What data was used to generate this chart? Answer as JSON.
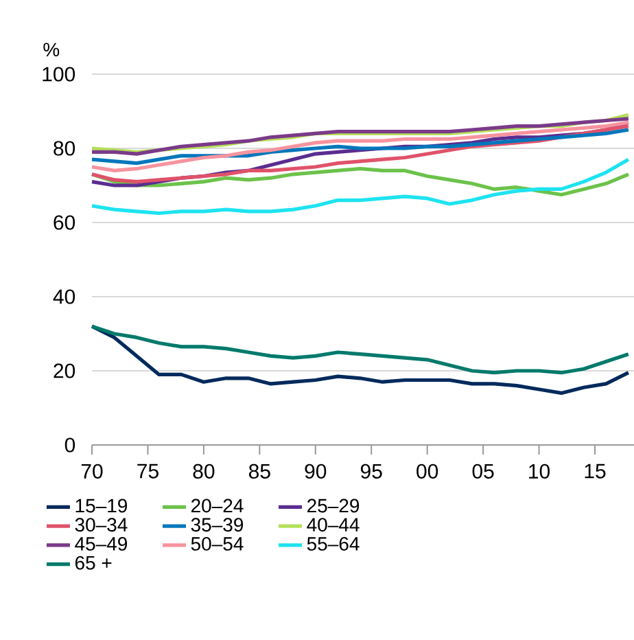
{
  "chart_data": {
    "type": "line",
    "ylabel": "%",
    "x": [
      1970,
      1972,
      1974,
      1976,
      1978,
      1980,
      1982,
      1984,
      1986,
      1988,
      1990,
      1992,
      1994,
      1996,
      1998,
      2000,
      2002,
      2004,
      2006,
      2008,
      2010,
      2012,
      2014,
      2016,
      2018
    ],
    "xlim": [
      1970,
      2018.5
    ],
    "xticks": [
      {
        "value": 1970,
        "label": "70"
      },
      {
        "value": 1975,
        "label": "75"
      },
      {
        "value": 1980,
        "label": "80"
      },
      {
        "value": 1985,
        "label": "85"
      },
      {
        "value": 1990,
        "label": "90"
      },
      {
        "value": 1995,
        "label": "95"
      },
      {
        "value": 2000,
        "label": "00"
      },
      {
        "value": 2005,
        "label": "05"
      },
      {
        "value": 2010,
        "label": "10"
      },
      {
        "value": 2015,
        "label": "15"
      }
    ],
    "ylim": [
      0,
      100
    ],
    "yticks": [
      0,
      20,
      40,
      60,
      80,
      100
    ],
    "grid": "y",
    "legend": "bottom",
    "line_style": "solid",
    "series": [
      {
        "name": "15–19",
        "color": "#002a5c",
        "values": [
          32,
          29,
          24,
          19,
          19,
          17,
          18,
          18,
          16.5,
          17,
          17.5,
          18.5,
          18,
          17,
          17.5,
          17.5,
          17.5,
          16.5,
          16.5,
          16,
          15,
          14,
          15.5,
          16.5,
          19.5
        ]
      },
      {
        "name": "20–24",
        "color": "#6cc24a",
        "values": [
          73,
          71,
          70,
          70,
          70.5,
          71,
          72,
          71.5,
          72,
          73,
          73.5,
          74,
          74.5,
          74,
          74,
          72.5,
          71.5,
          70.5,
          69,
          69.5,
          68.5,
          67.5,
          69,
          70.5,
          73
        ]
      },
      {
        "name": "25–29",
        "color": "#5a2d91",
        "values": [
          71,
          70,
          70,
          71,
          72,
          72.5,
          73.5,
          74,
          75.5,
          77,
          78.5,
          79,
          79.5,
          80,
          80.5,
          80.5,
          81,
          81.5,
          82.5,
          83,
          83,
          83.5,
          84,
          85,
          87
        ]
      },
      {
        "name": "30–34",
        "color": "#e0526a",
        "values": [
          73,
          71.5,
          71,
          71.5,
          72,
          72.5,
          73,
          74,
          74,
          74.5,
          75,
          76,
          76.5,
          77,
          77.5,
          78.5,
          79.5,
          80.5,
          81,
          81.5,
          82,
          83,
          84,
          85,
          86
        ]
      },
      {
        "name": "35–39",
        "color": "#0077bb",
        "values": [
          77,
          76.5,
          76,
          77,
          78,
          78,
          78,
          78,
          79,
          79.5,
          80,
          80.5,
          80,
          80,
          80,
          80.5,
          80.5,
          81,
          81.5,
          82,
          82.5,
          83,
          83.5,
          84,
          85
        ]
      },
      {
        "name": "40–44",
        "color": "#b5e05a",
        "values": [
          80,
          79.5,
          79,
          79.5,
          80,
          80.5,
          81,
          82,
          82.5,
          83,
          84,
          84,
          84,
          84,
          84,
          84,
          84,
          84.5,
          85,
          85.5,
          86,
          86,
          87,
          87.5,
          89
        ]
      },
      {
        "name": "45–49",
        "color": "#7b3a8a",
        "values": [
          79,
          79,
          78.5,
          79.5,
          80.5,
          81,
          81.5,
          82,
          83,
          83.5,
          84,
          84.5,
          84.5,
          84.5,
          84.5,
          84.5,
          84.5,
          85,
          85.5,
          86,
          86,
          86.5,
          87,
          87.5,
          88
        ]
      },
      {
        "name": "50–54",
        "color": "#f7939f",
        "values": [
          75,
          74,
          74.5,
          75.5,
          76.5,
          77.5,
          78,
          79,
          79.5,
          80.5,
          81.5,
          82,
          82,
          82,
          82.5,
          82.5,
          82.5,
          83,
          83.5,
          84,
          84.5,
          85,
          85.5,
          86,
          87
        ]
      },
      {
        "name": "55–64",
        "color": "#1ee3f0",
        "values": [
          64.5,
          63.5,
          63,
          62.5,
          63,
          63,
          63.5,
          63,
          63,
          63.5,
          64.5,
          66,
          66,
          66.5,
          67,
          66.5,
          65,
          66,
          67.5,
          68.5,
          69,
          69,
          71,
          73.5,
          77
        ]
      },
      {
        "name": "65 +",
        "color": "#007a6b",
        "values": [
          32,
          30,
          29,
          27.5,
          26.5,
          26.5,
          26,
          25,
          24,
          23.5,
          24,
          25,
          24.5,
          24,
          23.5,
          23,
          21.5,
          20,
          19.5,
          20,
          20,
          19.5,
          20.5,
          22.5,
          24.5
        ]
      }
    ]
  }
}
